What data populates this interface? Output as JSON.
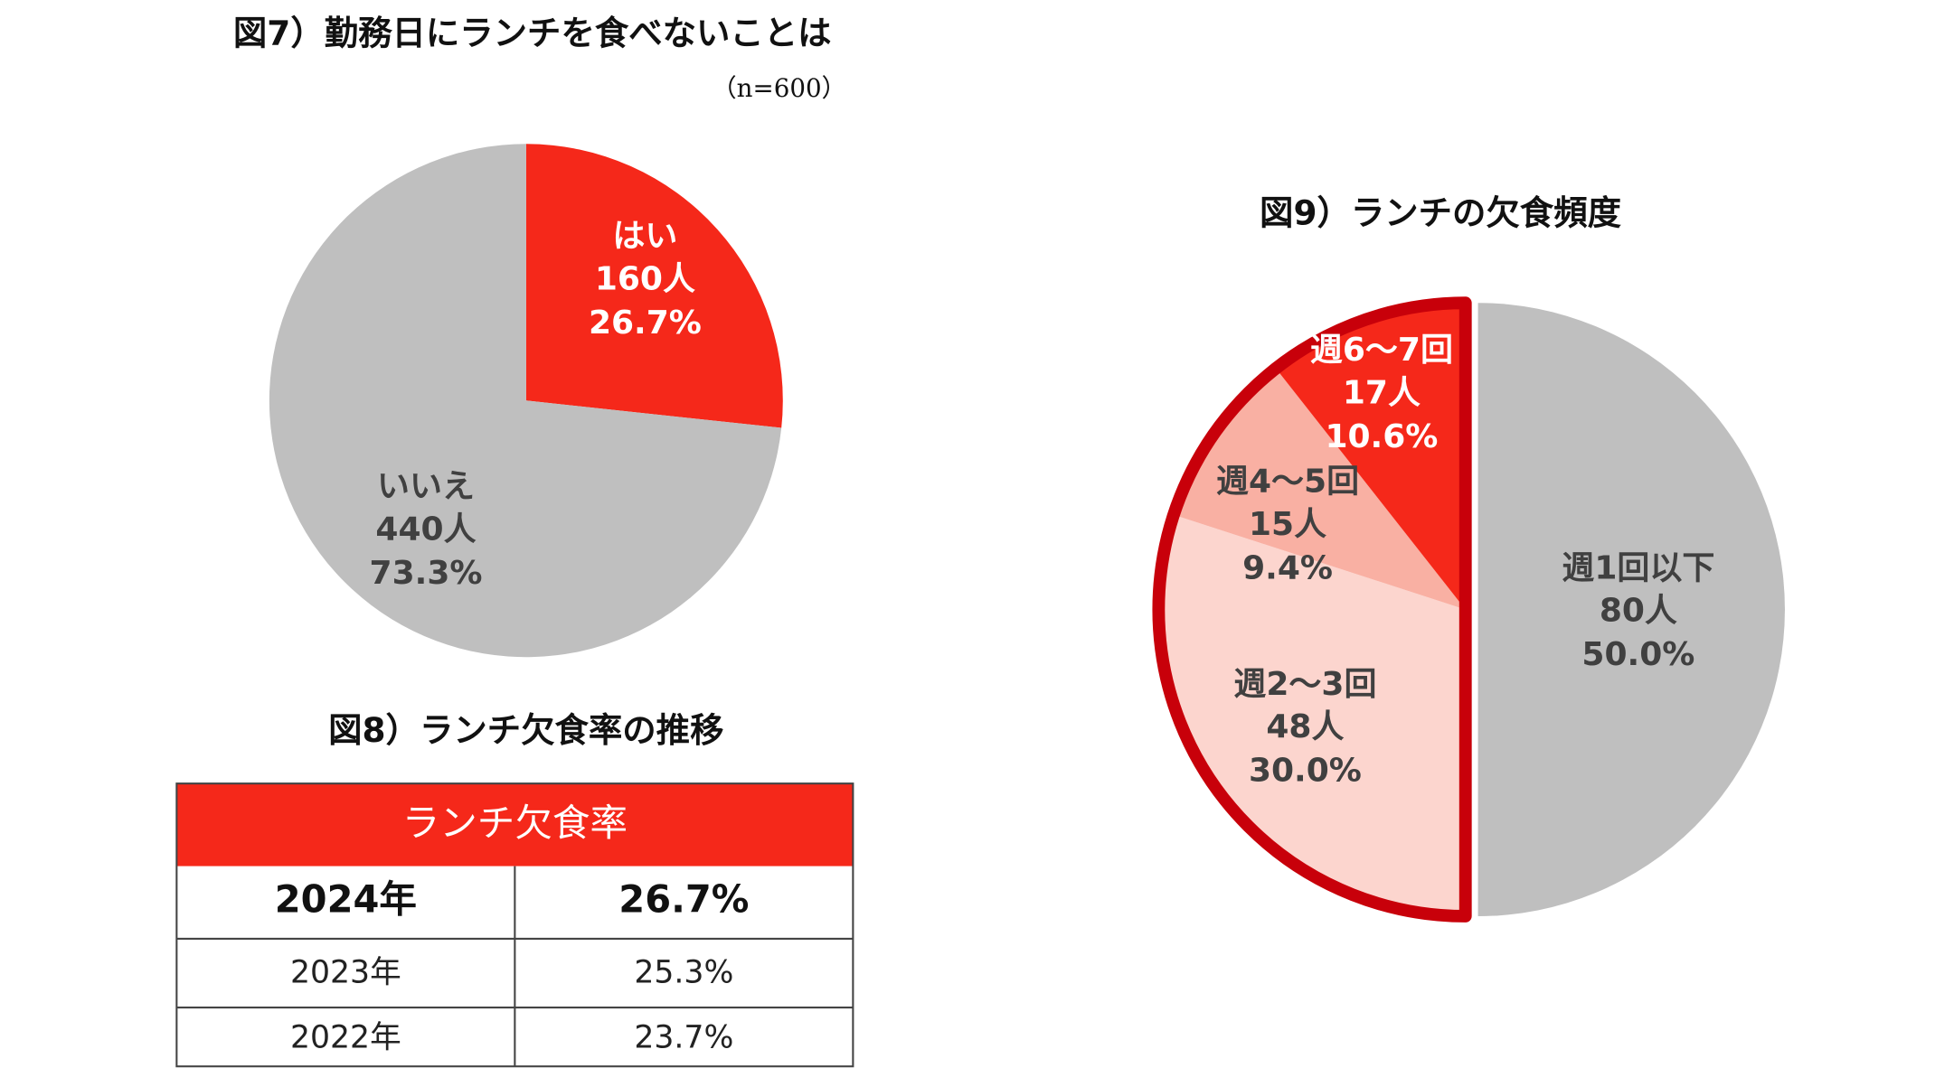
{
  "chart_data": [
    {
      "type": "pie",
      "title": "図7）勤務日にランチを食べないことは",
      "subtitle": "（n=600）",
      "categories": [
        "はい",
        "いいえ"
      ],
      "values": [
        26.7,
        73.3
      ],
      "value_labels": [
        "26.7%",
        "73.3%"
      ],
      "counts": [
        160,
        440
      ],
      "count_labels": [
        "160人",
        "440人"
      ],
      "colors": [
        "#f5281a",
        "#bfbfbf"
      ]
    },
    {
      "type": "pie",
      "title": "図9）ランチの欠食頻度",
      "categories": [
        "週1回以下",
        "週2〜3回",
        "週4〜5回",
        "週6〜7回"
      ],
      "values": [
        50.0,
        30.0,
        9.4,
        10.6
      ],
      "value_labels": [
        "50.0%",
        "30.0%",
        "9.4%",
        "10.6%"
      ],
      "counts": [
        80,
        48,
        15,
        17
      ],
      "count_labels": [
        "80人",
        "48人",
        "15人",
        "17人"
      ],
      "colors": [
        "#bfbfbf",
        "#fcd5ce",
        "#f9b0a3",
        "#f5281a"
      ],
      "highlight_color": "#c8000a"
    }
  ],
  "table": {
    "title": "図8）ランチ欠食率の推移",
    "header": "ランチ欠食率",
    "rows": [
      [
        "2024年",
        "26.7%"
      ],
      [
        "2023年",
        "25.3%"
      ],
      [
        "2022年",
        "23.7%"
      ]
    ]
  }
}
